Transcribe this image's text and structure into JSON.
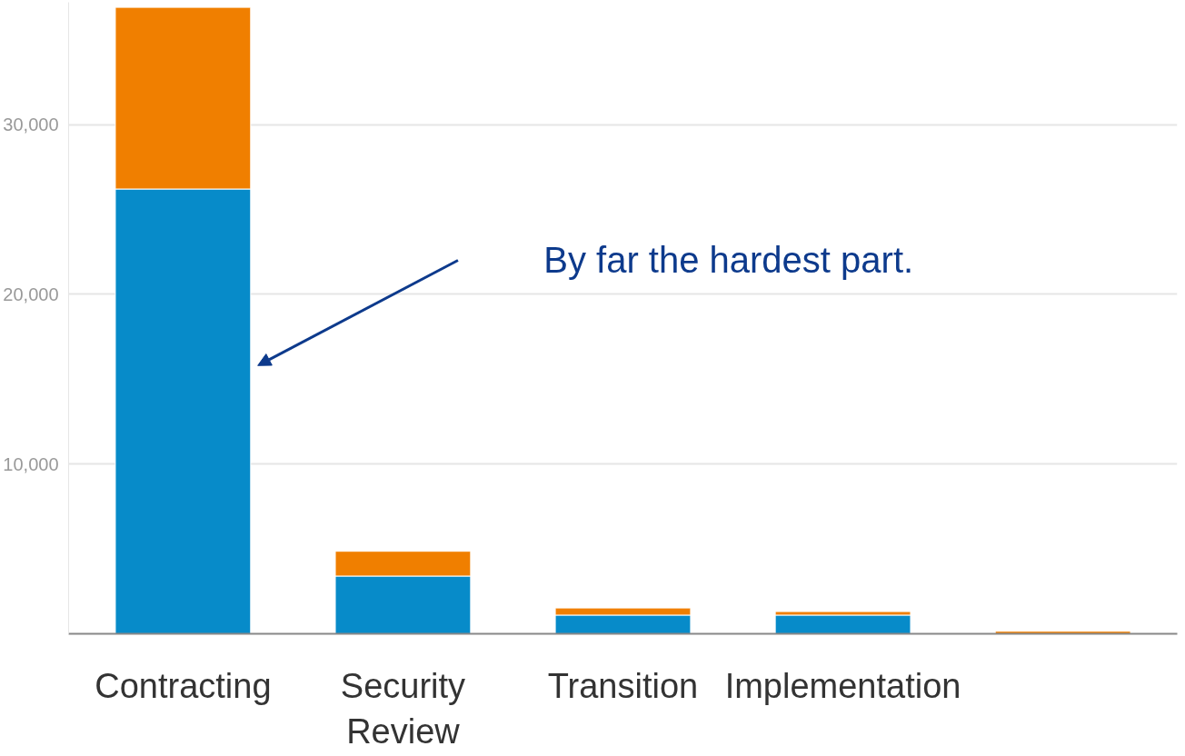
{
  "chart_data": {
    "type": "bar",
    "stacked": true,
    "categories": [
      "Contracting",
      "Security\nReview",
      "Transition",
      "Implementation",
      null
    ],
    "series": [
      {
        "color": "#078bc9",
        "values": [
          26200,
          3400,
          1100,
          1100,
          0
        ]
      },
      {
        "color": "#f07f00",
        "values": [
          10700,
          1460,
          420,
          210,
          150
        ]
      }
    ],
    "ylim": [
      0,
      37200
    ],
    "yticks": [
      {
        "value": 10000,
        "label": "10,000"
      },
      {
        "value": 20000,
        "label": "20,000"
      },
      {
        "value": 30000,
        "label": "30,000"
      }
    ],
    "grid": "y",
    "annotations": [
      "By far the hardest part."
    ]
  }
}
